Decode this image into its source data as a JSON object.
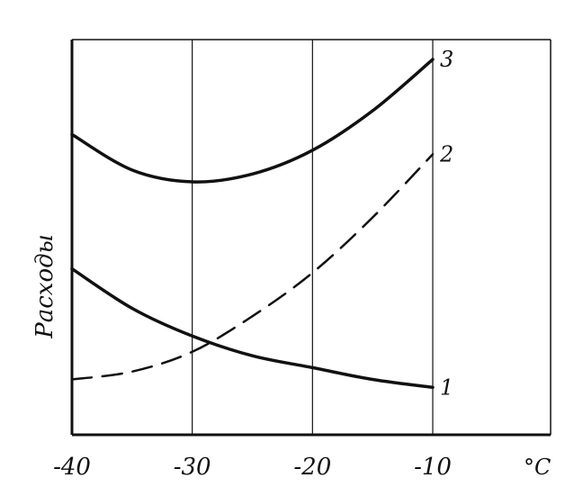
{
  "chart_data": {
    "type": "line",
    "title": "",
    "xlabel": "°C",
    "ylabel": "Расходы",
    "x_ticks": [
      "-40",
      "-30",
      "-20",
      "-10"
    ],
    "xlim": [
      -40,
      -10
    ],
    "ylim": [
      0,
      100
    ],
    "grid": "vertical",
    "series": [
      {
        "name": "1",
        "style": "solid",
        "x": [
          -40,
          -35,
          -30,
          -25,
          -20,
          -15,
          -10
        ],
        "y": [
          42,
          32,
          25,
          20,
          17,
          14,
          12
        ]
      },
      {
        "name": "2",
        "style": "dashed",
        "x": [
          -40,
          -35,
          -30,
          -25,
          -20,
          -15,
          -10
        ],
        "y": [
          14,
          16,
          21,
          30,
          41,
          55,
          71
        ]
      },
      {
        "name": "3",
        "style": "solid",
        "x": [
          -40,
          -35,
          -30,
          -25,
          -20,
          -15,
          -10
        ],
        "y": [
          76,
          67,
          64,
          66,
          72,
          82,
          95
        ]
      }
    ]
  }
}
